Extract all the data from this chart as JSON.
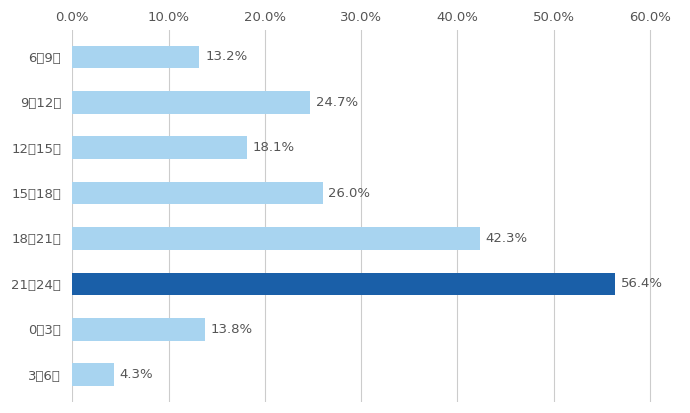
{
  "categories": [
    "6～9時",
    "9～12時",
    "12～15時",
    "15～18時",
    "18～21時",
    "21～24時",
    "0～3時",
    "3～6時"
  ],
  "values": [
    13.2,
    24.7,
    18.1,
    26.0,
    42.3,
    56.4,
    13.8,
    4.3
  ],
  "bar_colors": [
    "#a8d4f0",
    "#a8d4f0",
    "#a8d4f0",
    "#a8d4f0",
    "#a8d4f0",
    "#1a5fa8",
    "#a8d4f0",
    "#a8d4f0"
  ],
  "xlim": [
    0,
    63
  ],
  "xticks": [
    0.0,
    10.0,
    20.0,
    30.0,
    40.0,
    50.0,
    60.0
  ],
  "xtick_labels": [
    "0.0%",
    "10.0%",
    "20.0%",
    "30.0%",
    "40.0%",
    "50.0%",
    "60.0%"
  ],
  "bar_height": 0.5,
  "label_fontsize": 9.5,
  "tick_fontsize": 9.5,
  "background_color": "#ffffff",
  "grid_color": "#cccccc"
}
